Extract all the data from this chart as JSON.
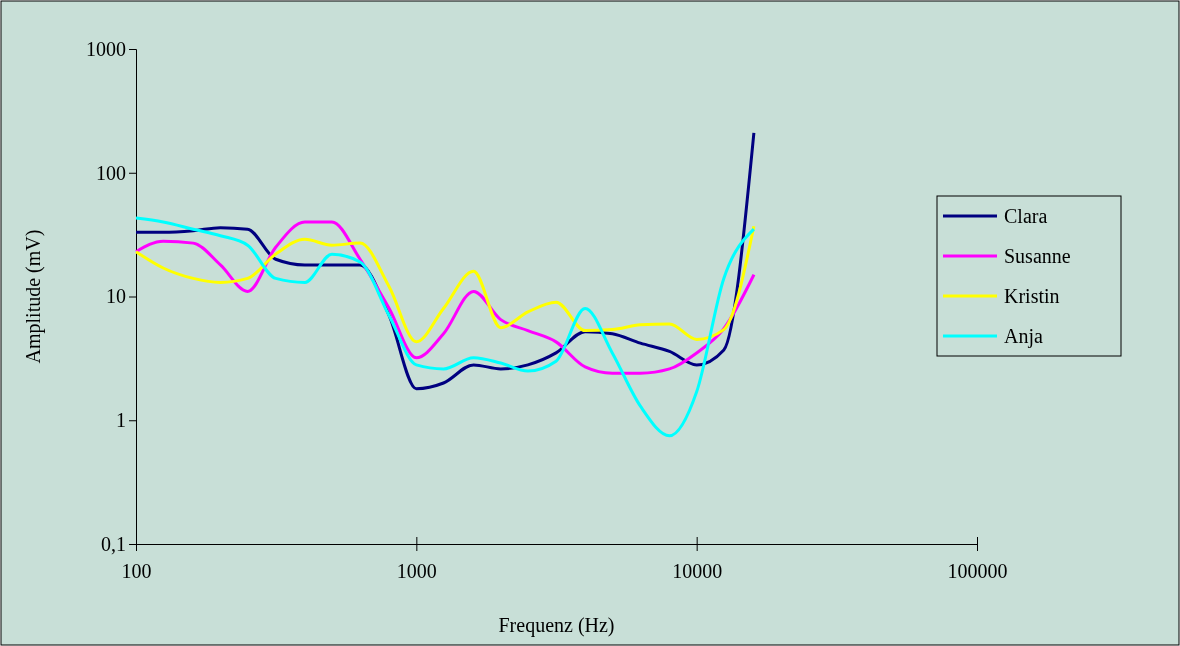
{
  "chart_data": {
    "type": "line",
    "xlabel": "Frequenz (Hz)",
    "ylabel": "Amplitude (mV)",
    "log": "xy",
    "grid": false,
    "legend": "right",
    "marker": "none",
    "line_style": "solid",
    "x": [
      100,
      125,
      160,
      200,
      250,
      315,
      400,
      500,
      630,
      800,
      1000,
      1250,
      1600,
      2000,
      2500,
      3150,
      4000,
      5000,
      6300,
      8000,
      10000,
      12500,
      16000
    ],
    "xlim": [
      100,
      100000
    ],
    "xticks": [
      100,
      1000,
      10000,
      100000
    ],
    "ylim": [
      0.1,
      1000
    ],
    "yticks": [
      {
        "value": 0.1,
        "label": "0,1"
      },
      1,
      10,
      100,
      1000
    ],
    "series": [
      {
        "name": "Clara",
        "color": "#000080",
        "values": [
          33,
          33,
          34,
          36,
          35,
          20,
          18,
          18,
          18,
          7,
          1.8,
          2,
          2.8,
          2.6,
          2.8,
          3.5,
          5.2,
          5,
          4.2,
          3.6,
          2.8,
          3.7,
          210
        ]
      },
      {
        "name": "Susanne",
        "color": "#ff00ff",
        "values": [
          23,
          28,
          27,
          18,
          11,
          25,
          40,
          40,
          20,
          8,
          3.2,
          5,
          11,
          6.5,
          5.3,
          4.3,
          2.7,
          2.4,
          2.4,
          2.6,
          3.5,
          5.5,
          15
        ]
      },
      {
        "name": "Kristin",
        "color": "#ffff00",
        "values": [
          23,
          17,
          14,
          13,
          14,
          22,
          29,
          26,
          27,
          12,
          4.3,
          8,
          16,
          5.6,
          7.5,
          9,
          5.3,
          5.4,
          5.9,
          6,
          4.5,
          5.4,
          37
        ]
      },
      {
        "name": "Anja",
        "color": "#00ffff",
        "values": [
          43,
          40,
          35,
          31,
          26,
          14,
          13,
          22,
          19,
          7,
          2.8,
          2.6,
          3.2,
          2.9,
          2.5,
          3,
          8,
          3.5,
          1.3,
          0.75,
          1.7,
          14,
          35
        ]
      }
    ]
  }
}
